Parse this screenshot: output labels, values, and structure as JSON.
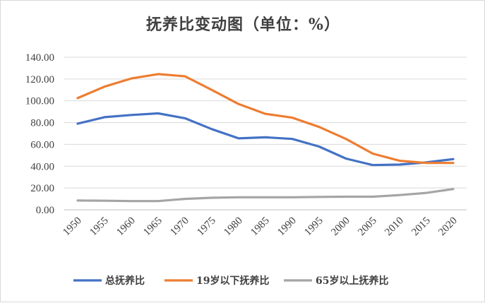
{
  "chart_data": {
    "type": "line",
    "title": "抚养比变动图（单位：%）",
    "x": [
      "1950",
      "1955",
      "1960",
      "1965",
      "1970",
      "1975",
      "1980",
      "1985",
      "1990",
      "1995",
      "2000",
      "2005",
      "2010",
      "2015",
      "2020"
    ],
    "ylim": [
      0,
      140
    ],
    "yticks": [
      "0.00",
      "20.00",
      "40.00",
      "60.00",
      "80.00",
      "100.00",
      "120.00",
      "140.00"
    ],
    "grid": true,
    "legend": "bottom",
    "series": [
      {
        "name": "总抚养比",
        "color": "#4472c4",
        "values": [
          79,
          85,
          87,
          88.5,
          84,
          74,
          65.5,
          66.5,
          65,
          58,
          47,
          41,
          41.5,
          43.5,
          46.5
        ]
      },
      {
        "name": "19岁以下抚养比",
        "color": "#ed7d31",
        "values": [
          102.5,
          113,
          120.5,
          124.5,
          122.5,
          110,
          97,
          88,
          84.5,
          76,
          65,
          51.5,
          45,
          43,
          43
        ]
      },
      {
        "name": "65岁以上抚养比",
        "color": "#a5a5a5",
        "values": [
          8.5,
          8.3,
          8.0,
          8.0,
          10,
          11,
          11.5,
          11.5,
          11.5,
          11.8,
          12,
          12,
          13.5,
          15.5,
          19
        ]
      }
    ]
  }
}
